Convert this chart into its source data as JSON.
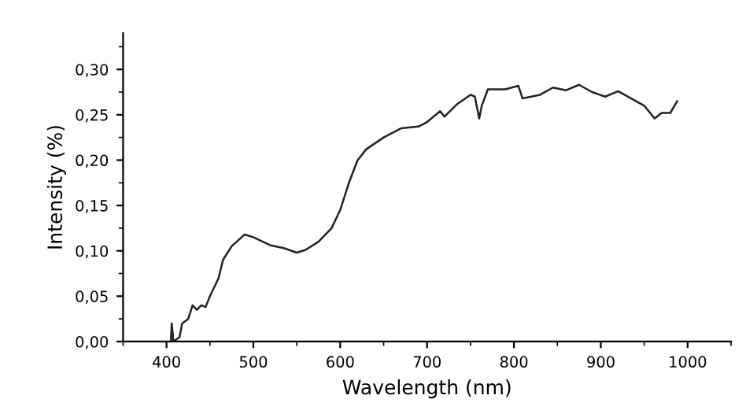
{
  "chart_data": {
    "type": "line",
    "xlabel": "Wavelength (nm)",
    "ylabel": "Intensity (%)",
    "xlim": [
      350,
      1050
    ],
    "xticks": [
      400,
      500,
      600,
      700,
      800,
      900,
      1000
    ],
    "ylim": [
      0,
      0.34
    ],
    "yticks": [
      {
        "value": 0,
        "label": "0,00"
      },
      {
        "value": 0.05,
        "label": "0,05"
      },
      {
        "value": 0.1,
        "label": "0,10"
      },
      {
        "value": 0.15,
        "label": "0,15"
      },
      {
        "value": 0.2,
        "label": "0,20"
      },
      {
        "value": 0.25,
        "label": "0,25"
      },
      {
        "value": 0.3,
        "label": "0,30"
      }
    ],
    "grid": false,
    "marker": "none",
    "line_style": "solid",
    "series": [
      {
        "color": "#222222",
        "x": [
          405,
          406,
          408,
          415,
          418,
          425,
          430,
          435,
          440,
          445,
          450,
          460,
          465,
          475,
          490,
          500,
          520,
          535,
          550,
          560,
          575,
          590,
          600,
          610,
          620,
          630,
          650,
          670,
          690,
          700,
          715,
          720,
          735,
          750,
          755,
          760,
          763,
          770,
          790,
          805,
          810,
          830,
          845,
          860,
          875,
          890,
          905,
          920,
          935,
          950,
          962,
          970,
          980,
          988
        ],
        "values": [
          0,
          0.02,
          0,
          0.005,
          0.02,
          0.025,
          0.04,
          0.035,
          0.04,
          0.038,
          0.05,
          0.07,
          0.09,
          0.105,
          0.118,
          0.115,
          0.106,
          0.103,
          0.098,
          0.101,
          0.11,
          0.125,
          0.145,
          0.175,
          0.2,
          0.212,
          0.225,
          0.235,
          0.237,
          0.242,
          0.254,
          0.248,
          0.262,
          0.272,
          0.27,
          0.246,
          0.26,
          0.278,
          0.278,
          0.282,
          0.268,
          0.272,
          0.28,
          0.277,
          0.283,
          0.275,
          0.27,
          0.276,
          0.268,
          0.26,
          0.246,
          0.252,
          0.252,
          0.265
        ]
      }
    ]
  }
}
